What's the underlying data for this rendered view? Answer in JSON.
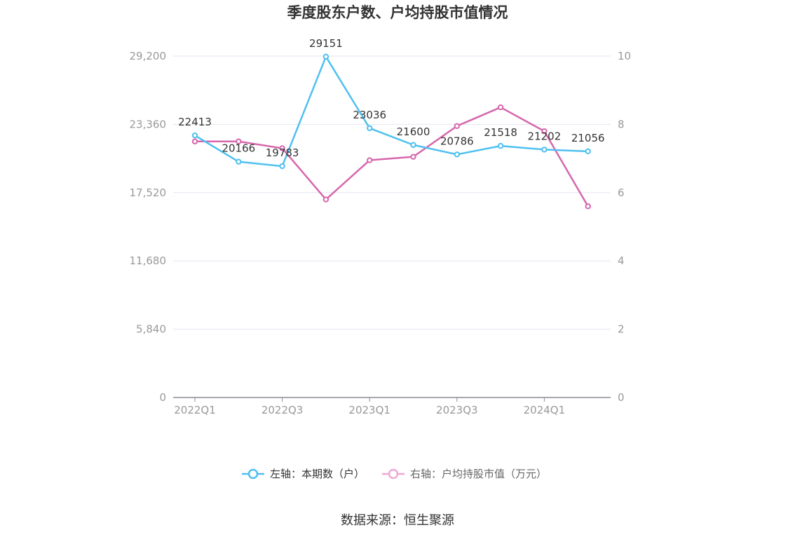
{
  "chart_data": {
    "type": "line",
    "title": "季度股东户数、户均持股市值情况",
    "categories": [
      "2022Q1",
      "2022Q2",
      "2022Q3",
      "2022Q4",
      "2023Q1",
      "2023Q2",
      "2023Q3",
      "2023Q4",
      "2024Q1",
      "2024Q2"
    ],
    "x_tick_labels": [
      "2022Q1",
      "2022Q3",
      "2023Q1",
      "2023Q3",
      "2024Q1"
    ],
    "left_axis": {
      "ticks": [
        "0",
        "5,840",
        "11,680",
        "17,520",
        "23,360",
        "29,200"
      ],
      "ylim": [
        0,
        29200
      ]
    },
    "right_axis": {
      "ticks": [
        "0",
        "2",
        "4",
        "6",
        "8",
        "10"
      ],
      "ylim": [
        0,
        10
      ]
    },
    "series": [
      {
        "name": "左轴：本期数（户）",
        "axis": "left",
        "color": "#4fc0f0",
        "values": [
          22413,
          20166,
          19783,
          29151,
          23036,
          21600,
          20786,
          21518,
          21202,
          21056
        ],
        "labels": [
          "22413",
          "20166",
          "19783",
          "29151",
          "23036",
          "21600",
          "20786",
          "21518",
          "21202",
          "21056"
        ]
      },
      {
        "name": "右轴：户均持股市值（万元）",
        "axis": "right",
        "color": "#d667ad",
        "values": [
          7.5,
          7.5,
          7.3,
          5.8,
          6.95,
          7.05,
          7.95,
          8.5,
          7.8,
          5.6
        ]
      }
    ],
    "legend_position": "bottom",
    "grid": true
  },
  "source": "数据来源：恒生聚源"
}
